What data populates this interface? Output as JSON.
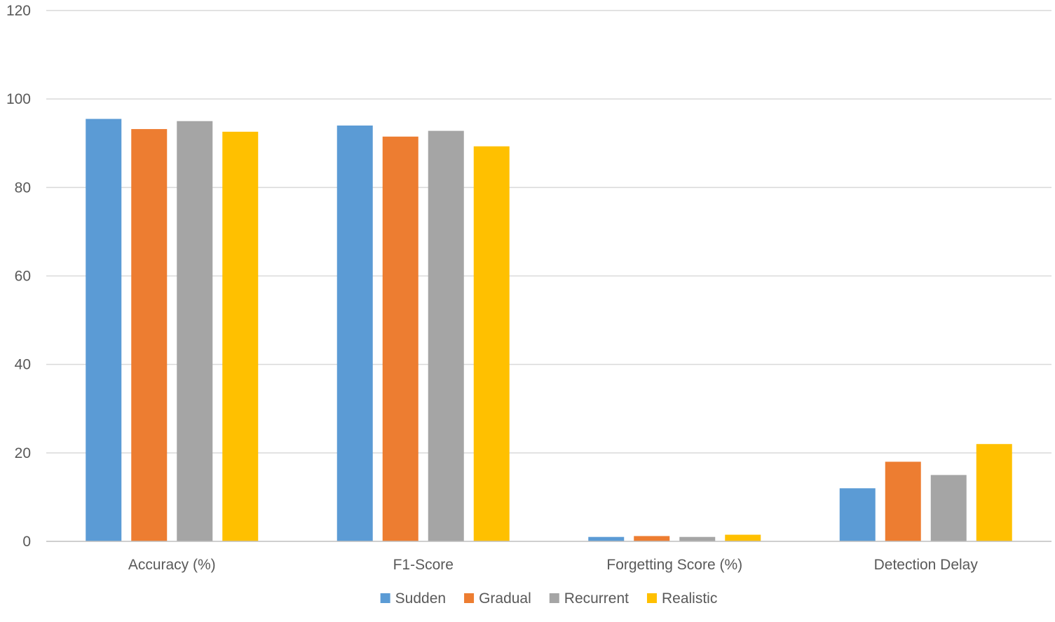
{
  "chart_data": {
    "type": "bar",
    "title": "",
    "xlabel": "",
    "ylabel": "",
    "ylim": [
      0,
      120
    ],
    "yticks": [
      0,
      20,
      40,
      60,
      80,
      100,
      120
    ],
    "categories": [
      "Accuracy (%)",
      "F1-Score",
      "Forgetting Score (%)",
      "Detection Delay"
    ],
    "series": [
      {
        "name": "Sudden",
        "color": "#5B9BD5",
        "values": [
          95.5,
          94.0,
          1.0,
          12.0
        ]
      },
      {
        "name": "Gradual",
        "color": "#ED7D31",
        "values": [
          93.2,
          91.5,
          1.2,
          18.0
        ]
      },
      {
        "name": "Recurrent",
        "color": "#A5A5A5",
        "values": [
          95.0,
          92.8,
          1.0,
          15.0
        ]
      },
      {
        "name": "Realistic",
        "color": "#FFC000",
        "values": [
          92.6,
          89.3,
          1.5,
          22.0
        ]
      }
    ],
    "grid": true,
    "legend_position": "bottom"
  },
  "colors": {
    "gridline": "#D9D9D9",
    "axis": "#BFBFBF",
    "text": "#595959"
  }
}
